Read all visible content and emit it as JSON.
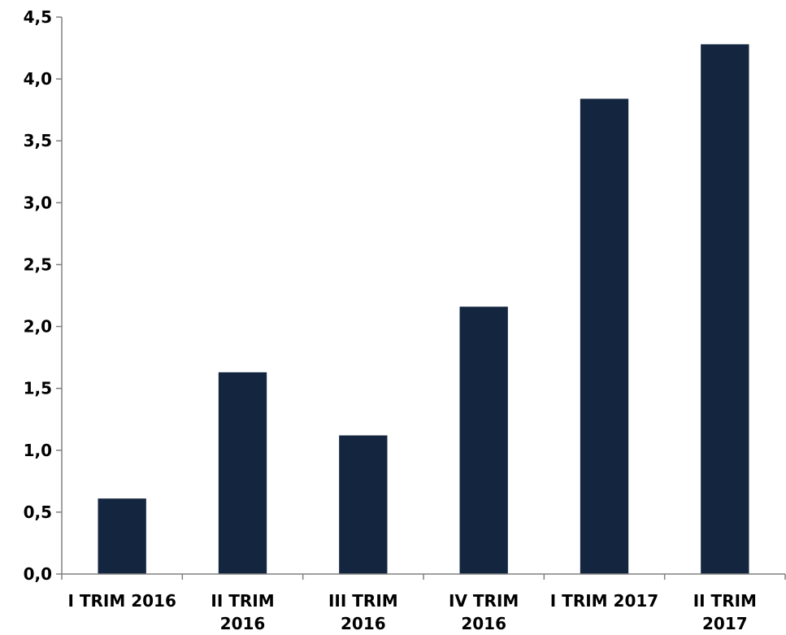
{
  "chart_data": {
    "type": "bar",
    "categories": [
      [
        "I TRIM 2016"
      ],
      [
        "II TRIM",
        "2016"
      ],
      [
        "III TRIM",
        "2016"
      ],
      [
        "IV TRIM",
        "2016"
      ],
      [
        "I TRIM 2017"
      ],
      [
        "II TRIM",
        "2017"
      ]
    ],
    "values": [
      0.61,
      1.63,
      1.12,
      2.16,
      3.84,
      4.28
    ],
    "ylim": [
      0,
      4.5
    ],
    "yticks": [
      "0,0",
      "0,5",
      "1,0",
      "1,5",
      "2,0",
      "2,5",
      "3,0",
      "3,5",
      "4,0",
      "4,5"
    ],
    "ytick_values": [
      0,
      0.5,
      1.0,
      1.5,
      2.0,
      2.5,
      3.0,
      3.5,
      4.0,
      4.5
    ],
    "title": "",
    "xlabel": "",
    "ylabel": "",
    "grid": false,
    "bar_color": "#14263f",
    "axis_color": "#808080"
  }
}
